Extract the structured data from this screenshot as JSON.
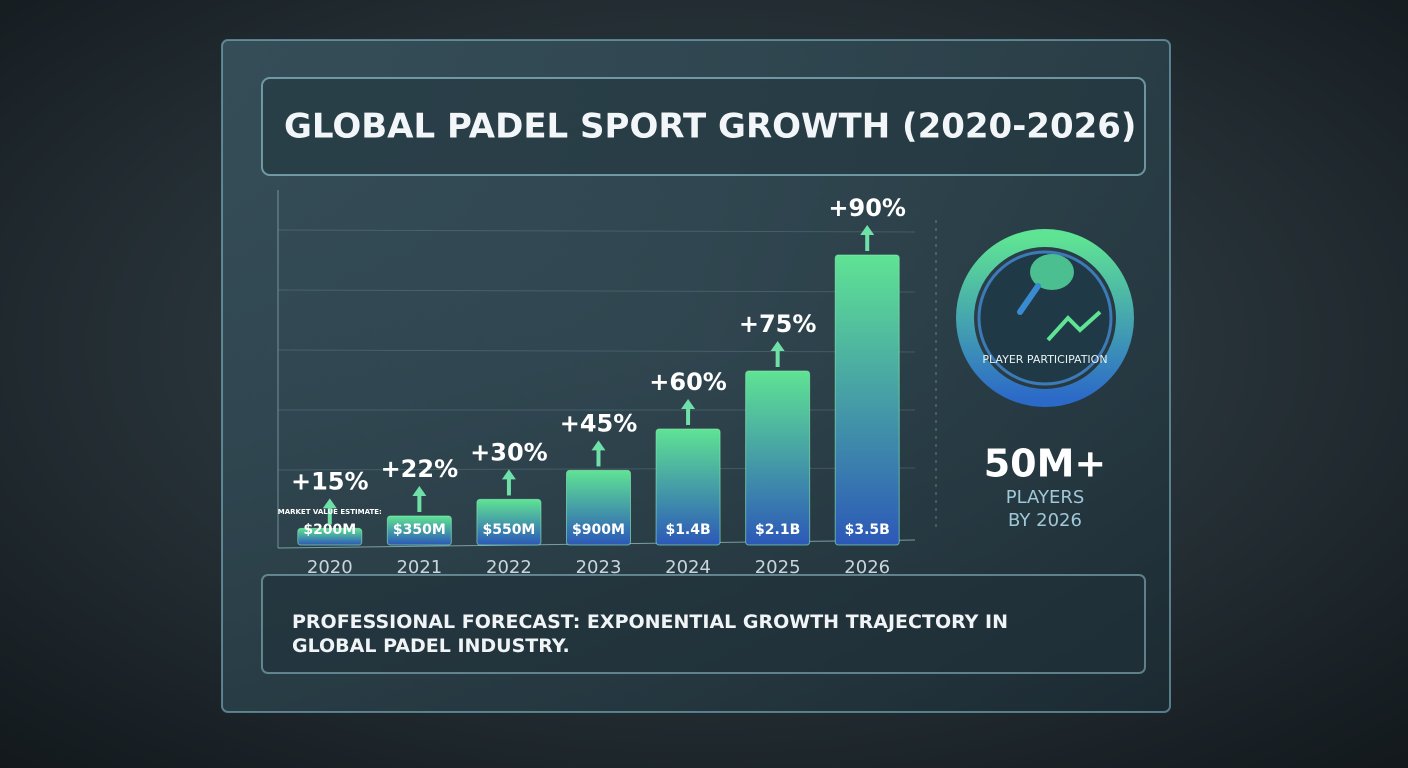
{
  "chart_data": {
    "type": "bar",
    "title": "GLOBAL PADEL SPORT GROWTH (2020-2026)",
    "categories": [
      "2020",
      "2021",
      "2022",
      "2023",
      "2024",
      "2025",
      "2026"
    ],
    "values": [
      200,
      350,
      550,
      900,
      1400,
      2100,
      3500
    ],
    "value_labels": [
      "$200M",
      "$350M",
      "$550M",
      "$900M",
      "$1.4B",
      "$2.1B",
      "$3.5B"
    ],
    "growth_labels": [
      "+15%",
      "+22%",
      "+30%",
      "+45%",
      "+60%",
      "+75%",
      "+90%"
    ],
    "bar_note": "MARKET VALUE ESTIMATE:",
    "colors": [
      "#5fe394",
      "#2c58b8"
    ],
    "side_panel": {
      "icon_caption": "PLAYER PARTICIPATION",
      "headline": "50M+",
      "caption_line1": "PLAYERS",
      "caption_line2": "BY 2026"
    },
    "footer": "PROFESSIONAL FORECAST: EXPONENTIAL GROWTH TRAJECTORY IN GLOBAL PADEL INDUSTRY."
  }
}
